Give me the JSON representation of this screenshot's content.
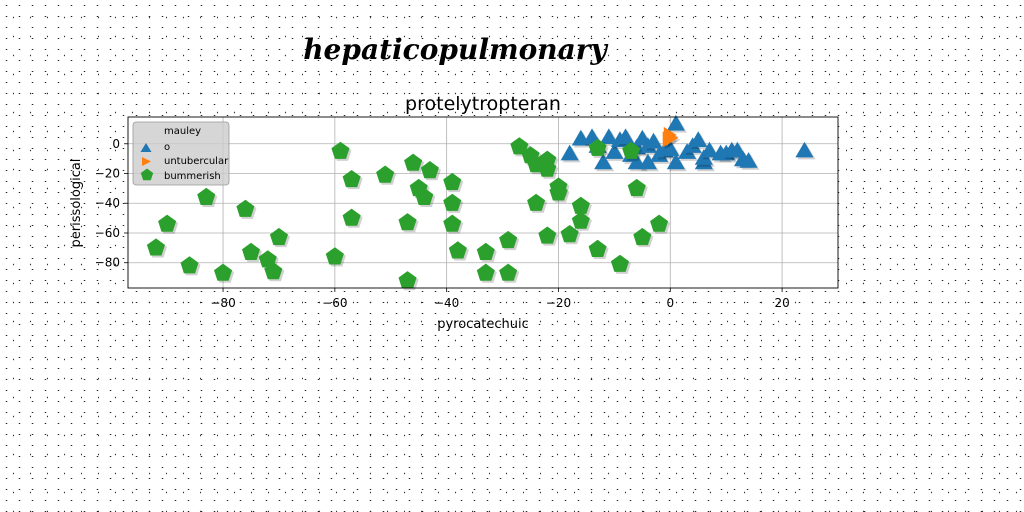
{
  "chart_data": {
    "type": "scatter",
    "suptitle": "hepaticopulmonary",
    "title": "protelytropteran",
    "xlabel": "pyrocatechuic",
    "ylabel": "perissological",
    "xlim": [
      -97,
      30
    ],
    "ylim": [
      -97,
      18
    ],
    "xticks": [
      -80,
      -60,
      -40,
      -20,
      0,
      20
    ],
    "yticks": [
      0,
      -20,
      -40,
      -60,
      -80
    ],
    "xtick_labels": [
      "−80",
      "−60",
      "−40",
      "−20",
      "0",
      "20"
    ],
    "ytick_labels": [
      "0",
      "−20",
      "−40",
      "−60",
      "−80"
    ],
    "grid": true,
    "legend_position": "top-left",
    "legend_title": "mauley",
    "series": [
      {
        "name": "o",
        "marker": "triangle",
        "color": "#1f77b4",
        "points": [
          [
            -18,
            -7
          ],
          [
            -16,
            3
          ],
          [
            -14,
            4
          ],
          [
            -13,
            -2
          ],
          [
            -12,
            -13
          ],
          [
            -11,
            4
          ],
          [
            -10,
            -6
          ],
          [
            -9,
            2
          ],
          [
            -8,
            4
          ],
          [
            -7,
            -8
          ],
          [
            -6,
            -3
          ],
          [
            -6,
            -13
          ],
          [
            -5,
            3
          ],
          [
            -4,
            -2
          ],
          [
            -4,
            -13
          ],
          [
            -3,
            1
          ],
          [
            -2,
            -8
          ],
          [
            -1,
            -5
          ],
          [
            0,
            -4
          ],
          [
            1,
            13
          ],
          [
            1,
            -13
          ],
          [
            3,
            -6
          ],
          [
            4,
            -2
          ],
          [
            5,
            2
          ],
          [
            6,
            -13
          ],
          [
            6,
            -10
          ],
          [
            7,
            -5
          ],
          [
            9,
            -7
          ],
          [
            10,
            -7
          ],
          [
            11,
            -5
          ],
          [
            12,
            -5
          ],
          [
            13,
            -11
          ],
          [
            14,
            -12
          ],
          [
            24,
            -5
          ]
        ]
      },
      {
        "name": "untubercular",
        "marker": "triangle-right",
        "color": "#ff7f0e",
        "points": [
          [
            -0.5,
            3
          ],
          [
            -0.3,
            6
          ],
          [
            0,
            4
          ]
        ]
      },
      {
        "name": "bummerish",
        "marker": "pentagon",
        "color": "#2ca02c",
        "points": [
          [
            -92,
            -70
          ],
          [
            -90,
            -54
          ],
          [
            -86,
            -82
          ],
          [
            -83,
            -36
          ],
          [
            -80,
            -87
          ],
          [
            -76,
            -44
          ],
          [
            -75,
            -73
          ],
          [
            -72,
            -78
          ],
          [
            -71,
            -86
          ],
          [
            -70,
            -63
          ],
          [
            -60,
            -76
          ],
          [
            -59,
            -5
          ],
          [
            -57,
            -24
          ],
          [
            -57,
            -50
          ],
          [
            -51,
            -21
          ],
          [
            -47,
            -53
          ],
          [
            -47,
            -92
          ],
          [
            -46,
            -13
          ],
          [
            -45,
            -30
          ],
          [
            -44,
            -36
          ],
          [
            -43,
            -18
          ],
          [
            -39,
            -26
          ],
          [
            -39,
            -40
          ],
          [
            -39,
            -54
          ],
          [
            -38,
            -72
          ],
          [
            -33,
            -73
          ],
          [
            -33,
            -87
          ],
          [
            -29,
            -65
          ],
          [
            -29,
            -87
          ],
          [
            -27,
            -2
          ],
          [
            -25,
            -8
          ],
          [
            -24,
            -40
          ],
          [
            -24,
            -14
          ],
          [
            -22,
            -11
          ],
          [
            -22,
            -17
          ],
          [
            -22,
            -62
          ],
          [
            -20,
            -29
          ],
          [
            -20,
            -33
          ],
          [
            -18,
            -61
          ],
          [
            -16,
            -42
          ],
          [
            -16,
            -52
          ],
          [
            -13,
            -71
          ],
          [
            -13,
            -3
          ],
          [
            -9,
            -81
          ],
          [
            -7,
            -5
          ],
          [
            -6,
            -30
          ],
          [
            -5,
            -63
          ],
          [
            -2,
            -54
          ]
        ]
      }
    ]
  }
}
